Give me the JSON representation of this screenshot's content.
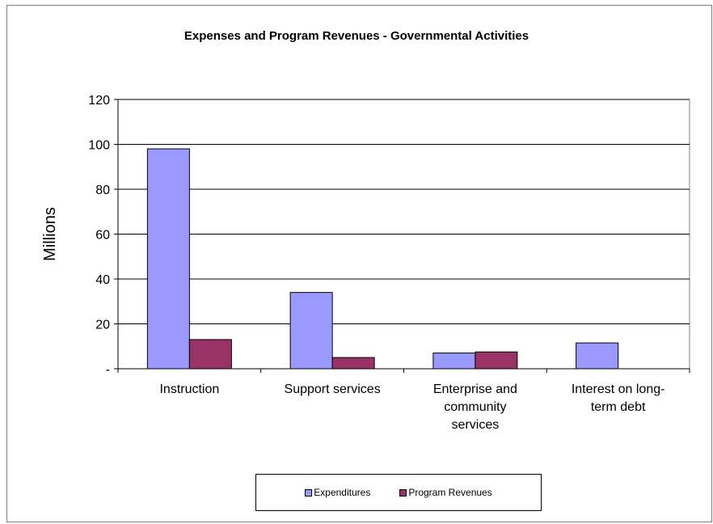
{
  "chart_data": {
    "type": "bar",
    "title": "Expenses and Program Revenues - Governmental Activities",
    "xlabel": "",
    "ylabel": "Millions",
    "categories": [
      [
        "Instruction"
      ],
      [
        "Support services"
      ],
      [
        "Enterprise and",
        "community",
        "services"
      ],
      [
        "Interest on long-",
        "term debt"
      ]
    ],
    "series": [
      {
        "name": "Expenditures",
        "color": "#9999ff",
        "values": [
          98,
          34,
          7,
          11.5
        ]
      },
      {
        "name": "Program Revenues",
        "color": "#993366",
        "values": [
          13,
          5,
          7.5,
          0
        ]
      }
    ],
    "ylim": [
      0,
      120
    ],
    "yticks": [
      {
        "value": 0,
        "label": "-"
      },
      {
        "value": 20,
        "label": "20"
      },
      {
        "value": 40,
        "label": "40"
      },
      {
        "value": 60,
        "label": "60"
      },
      {
        "value": 80,
        "label": "80"
      },
      {
        "value": 100,
        "label": "100"
      },
      {
        "value": 120,
        "label": "120"
      }
    ],
    "grid": true,
    "legend_position": "bottom"
  }
}
